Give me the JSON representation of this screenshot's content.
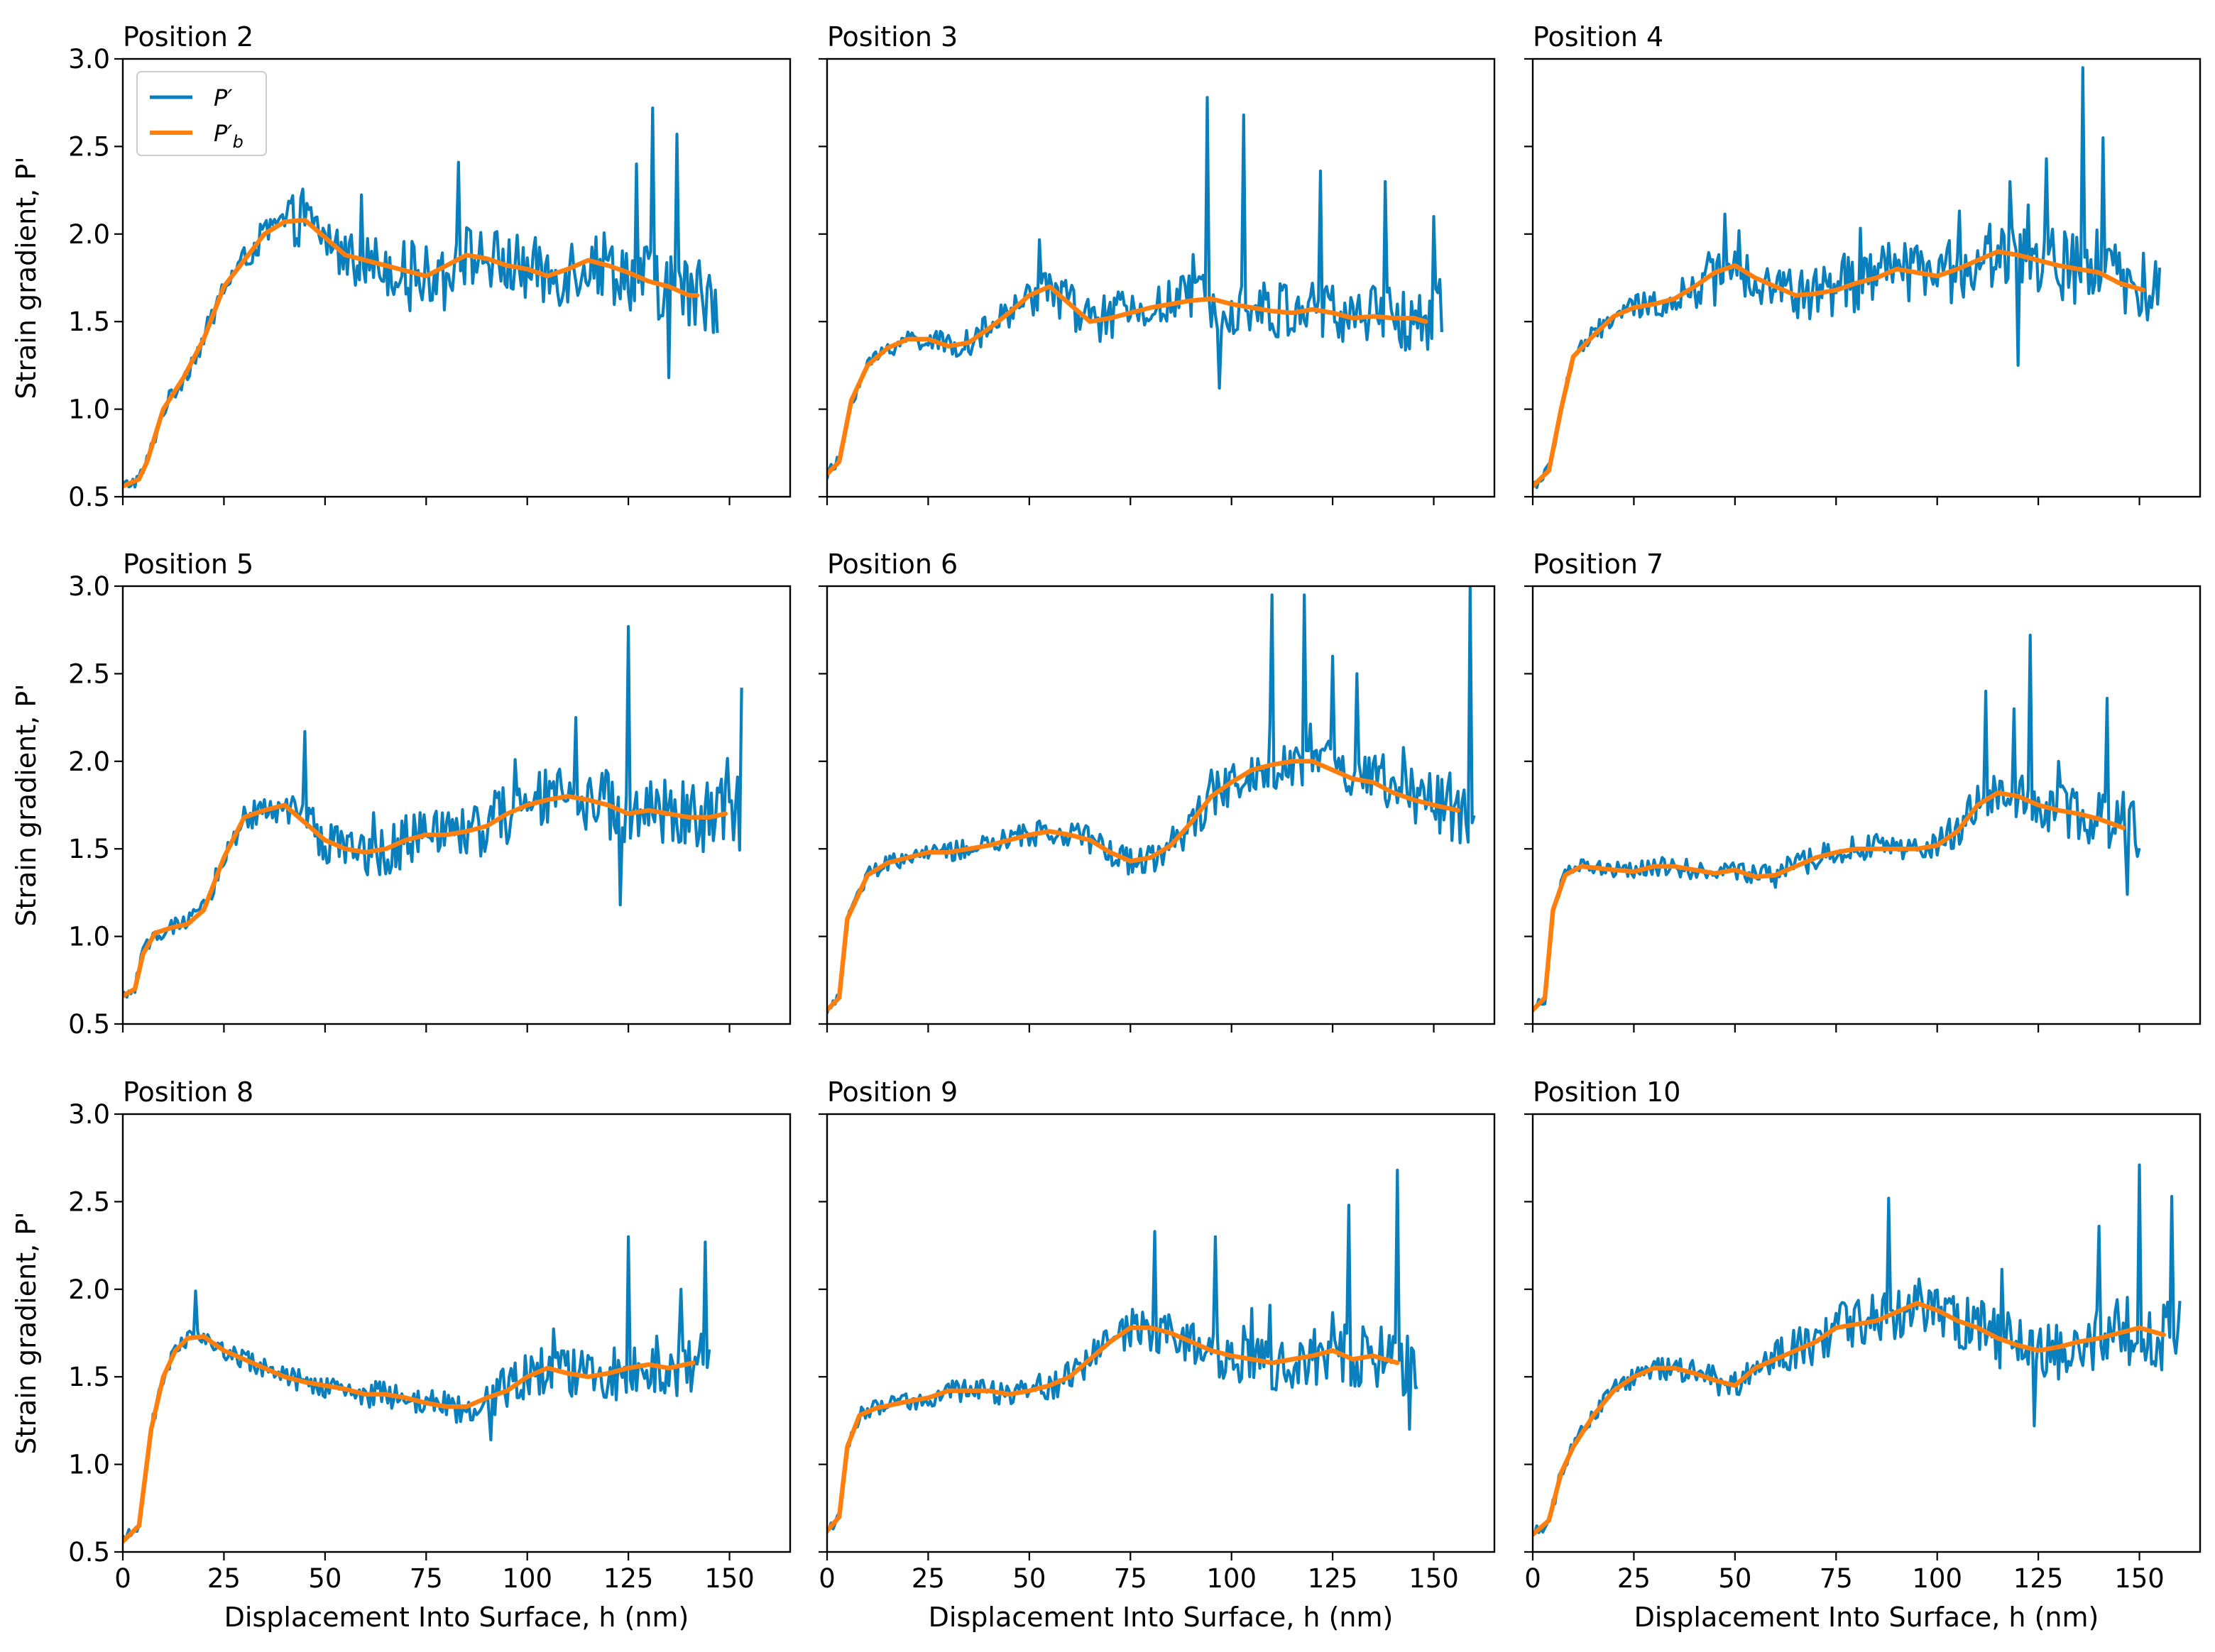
{
  "colors": {
    "raw": "#0a7fbd",
    "smooth": "#ff7f0e"
  },
  "legend": {
    "raw_label": "P′",
    "smooth_label_base": "P′",
    "smooth_label_sub": "b"
  },
  "axes": {
    "ylabel": "Strain gradient, P'",
    "xlabel": "Displacement Into Surface, h (nm)",
    "yticks": [
      "0.5",
      "1.0",
      "1.5",
      "2.0",
      "2.5",
      "3.0"
    ],
    "ytick_values": [
      0.5,
      1.0,
      1.5,
      2.0,
      2.5,
      3.0
    ],
    "xticks": [
      "0",
      "25",
      "50",
      "75",
      "100",
      "125",
      "150"
    ],
    "xtick_values": [
      0,
      25,
      50,
      75,
      100,
      125,
      150
    ]
  },
  "chart_data": [
    {
      "type": "line",
      "title": "Position 2",
      "xlim": [
        0,
        165
      ],
      "ylim": [
        0.5,
        3.0
      ],
      "x_end": 147,
      "smooth_end": 142,
      "noise": 0.18,
      "noise_start": 40,
      "spikes": [
        [
          131,
          2.72
        ],
        [
          137,
          2.57
        ],
        [
          127,
          2.4
        ],
        [
          83,
          2.41
        ],
        [
          135,
          1.18
        ]
      ],
      "series": [
        {
          "name": "P′",
          "role": "raw"
        },
        {
          "name": "P′_b",
          "role": "smooth",
          "x": [
            0,
            4,
            6,
            10,
            15,
            20,
            25,
            30,
            35,
            40,
            45,
            50,
            55,
            60,
            65,
            70,
            75,
            80,
            85,
            90,
            95,
            100,
            105,
            110,
            115,
            120,
            125,
            130,
            135,
            140,
            142
          ],
          "values": [
            0.56,
            0.6,
            0.7,
            1.0,
            1.18,
            1.4,
            1.7,
            1.85,
            2.0,
            2.07,
            2.08,
            1.98,
            1.88,
            1.85,
            1.82,
            1.79,
            1.76,
            1.82,
            1.88,
            1.86,
            1.82,
            1.8,
            1.76,
            1.8,
            1.85,
            1.82,
            1.78,
            1.73,
            1.7,
            1.65,
            1.65
          ]
        }
      ]
    },
    {
      "type": "line",
      "title": "Position 3",
      "xlim": [
        0,
        165
      ],
      "ylim": [
        0.5,
        3.0
      ],
      "x_end": 152,
      "smooth_end": 148,
      "noise": 0.16,
      "noise_start": 50,
      "spikes": [
        [
          94,
          2.78
        ],
        [
          103,
          2.68
        ],
        [
          122,
          2.36
        ],
        [
          138,
          2.3
        ],
        [
          150,
          2.1
        ],
        [
          97,
          1.12
        ]
      ],
      "series": [
        {
          "name": "P′",
          "role": "raw"
        },
        {
          "name": "P′_b",
          "role": "smooth",
          "x": [
            0,
            3,
            6,
            10,
            15,
            20,
            25,
            30,
            35,
            40,
            45,
            50,
            55,
            60,
            65,
            70,
            75,
            80,
            85,
            90,
            95,
            100,
            105,
            110,
            115,
            120,
            125,
            130,
            135,
            140,
            145,
            148
          ],
          "values": [
            0.63,
            0.7,
            1.05,
            1.25,
            1.35,
            1.4,
            1.4,
            1.36,
            1.38,
            1.46,
            1.55,
            1.65,
            1.7,
            1.6,
            1.5,
            1.52,
            1.55,
            1.58,
            1.6,
            1.62,
            1.63,
            1.6,
            1.58,
            1.56,
            1.55,
            1.57,
            1.55,
            1.52,
            1.53,
            1.52,
            1.52,
            1.5
          ]
        }
      ]
    },
    {
      "type": "line",
      "title": "Position 4",
      "xlim": [
        0,
        165
      ],
      "ylim": [
        0.5,
        3.0
      ],
      "x_end": 155,
      "smooth_end": 151,
      "noise": 0.17,
      "noise_start": 40,
      "spikes": [
        [
          136,
          2.95
        ],
        [
          127,
          2.43
        ],
        [
          141,
          2.55
        ],
        [
          118,
          2.3
        ],
        [
          120,
          1.25
        ]
      ],
      "series": [
        {
          "name": "P′",
          "role": "raw"
        },
        {
          "name": "P′_b",
          "role": "smooth",
          "x": [
            0,
            4,
            7,
            10,
            15,
            20,
            25,
            30,
            35,
            40,
            45,
            50,
            55,
            60,
            65,
            70,
            75,
            80,
            85,
            90,
            95,
            100,
            105,
            110,
            115,
            120,
            125,
            130,
            135,
            140,
            145,
            151
          ],
          "values": [
            0.56,
            0.65,
            1.0,
            1.3,
            1.42,
            1.53,
            1.58,
            1.6,
            1.63,
            1.7,
            1.78,
            1.82,
            1.75,
            1.7,
            1.65,
            1.66,
            1.68,
            1.72,
            1.75,
            1.8,
            1.78,
            1.76,
            1.8,
            1.85,
            1.9,
            1.88,
            1.85,
            1.82,
            1.8,
            1.78,
            1.72,
            1.68
          ]
        }
      ]
    },
    {
      "type": "line",
      "title": "Position 5",
      "xlim": [
        0,
        165
      ],
      "ylim": [
        0.5,
        3.0
      ],
      "x_end": 153,
      "smooth_end": 149,
      "noise": 0.17,
      "noise_start": 45,
      "spikes": [
        [
          125,
          2.77
        ],
        [
          153,
          2.42
        ],
        [
          112,
          2.25
        ],
        [
          45,
          2.17
        ],
        [
          123,
          1.18
        ]
      ],
      "series": [
        {
          "name": "P′",
          "role": "raw"
        },
        {
          "name": "P′_b",
          "role": "smooth",
          "x": [
            0,
            3,
            5,
            8,
            12,
            16,
            20,
            25,
            30,
            35,
            40,
            45,
            50,
            55,
            60,
            65,
            70,
            75,
            80,
            85,
            90,
            95,
            100,
            105,
            110,
            115,
            120,
            125,
            130,
            135,
            140,
            145,
            149
          ],
          "values": [
            0.66,
            0.7,
            0.9,
            1.02,
            1.05,
            1.07,
            1.15,
            1.45,
            1.68,
            1.72,
            1.75,
            1.65,
            1.55,
            1.5,
            1.48,
            1.5,
            1.55,
            1.58,
            1.58,
            1.6,
            1.63,
            1.7,
            1.75,
            1.78,
            1.8,
            1.78,
            1.75,
            1.7,
            1.72,
            1.7,
            1.68,
            1.68,
            1.7
          ]
        }
      ]
    },
    {
      "type": "line",
      "title": "Position 6",
      "xlim": [
        0,
        165
      ],
      "ylim": [
        0.5,
        3.0
      ],
      "x_end": 160,
      "smooth_end": 156,
      "noise": 0.15,
      "noise_start": 85,
      "spikes": [
        [
          110,
          2.95
        ],
        [
          118,
          2.95
        ],
        [
          159,
          3.0
        ],
        [
          125,
          2.6
        ],
        [
          131,
          2.5
        ]
      ],
      "series": [
        {
          "name": "P′",
          "role": "raw"
        },
        {
          "name": "P′_b",
          "role": "smooth",
          "x": [
            0,
            3,
            5,
            10,
            15,
            20,
            25,
            30,
            35,
            40,
            45,
            50,
            55,
            60,
            65,
            70,
            75,
            80,
            85,
            90,
            95,
            100,
            105,
            110,
            115,
            120,
            125,
            130,
            135,
            140,
            145,
            150,
            156
          ],
          "values": [
            0.58,
            0.65,
            1.1,
            1.35,
            1.42,
            1.45,
            1.48,
            1.48,
            1.5,
            1.52,
            1.55,
            1.58,
            1.6,
            1.58,
            1.55,
            1.48,
            1.43,
            1.45,
            1.52,
            1.65,
            1.8,
            1.88,
            1.95,
            1.98,
            2.0,
            2.0,
            1.95,
            1.9,
            1.88,
            1.82,
            1.78,
            1.75,
            1.72
          ]
        }
      ]
    },
    {
      "type": "line",
      "title": "Position 7",
      "xlim": [
        0,
        165
      ],
      "ylim": [
        0.5,
        3.0
      ],
      "x_end": 150,
      "smooth_end": 146,
      "noise": 0.13,
      "noise_start": 100,
      "spikes": [
        [
          123,
          2.72
        ],
        [
          112,
          2.4
        ],
        [
          119,
          2.3
        ],
        [
          130,
          2.0
        ],
        [
          142,
          2.36
        ],
        [
          147,
          1.24
        ]
      ],
      "series": [
        {
          "name": "P′",
          "role": "raw"
        },
        {
          "name": "P′_b",
          "role": "smooth",
          "x": [
            0,
            3,
            5,
            8,
            12,
            20,
            25,
            30,
            35,
            40,
            45,
            50,
            55,
            60,
            65,
            70,
            75,
            80,
            85,
            90,
            95,
            100,
            105,
            110,
            115,
            120,
            125,
            130,
            135,
            140,
            146
          ],
          "values": [
            0.58,
            0.65,
            1.15,
            1.35,
            1.4,
            1.38,
            1.37,
            1.4,
            1.4,
            1.38,
            1.36,
            1.38,
            1.34,
            1.35,
            1.4,
            1.45,
            1.48,
            1.5,
            1.5,
            1.5,
            1.5,
            1.52,
            1.6,
            1.75,
            1.82,
            1.8,
            1.75,
            1.72,
            1.7,
            1.67,
            1.62
          ]
        }
      ]
    },
    {
      "type": "line",
      "title": "Position 8",
      "xlim": [
        0,
        165
      ],
      "ylim": [
        0.5,
        3.0
      ],
      "x_end": 145,
      "smooth_end": 141,
      "noise": 0.15,
      "noise_start": 90,
      "spikes": [
        [
          125,
          2.3
        ],
        [
          144,
          2.27
        ],
        [
          18,
          1.99
        ],
        [
          138,
          2.0
        ],
        [
          91,
          1.14
        ]
      ],
      "series": [
        {
          "name": "P′",
          "role": "raw"
        },
        {
          "name": "P′_b",
          "role": "smooth",
          "x": [
            0,
            4,
            7,
            10,
            13,
            16,
            20,
            25,
            30,
            35,
            40,
            45,
            50,
            55,
            60,
            65,
            70,
            75,
            80,
            85,
            90,
            95,
            100,
            105,
            110,
            115,
            120,
            125,
            130,
            135,
            141
          ],
          "values": [
            0.56,
            0.65,
            1.2,
            1.5,
            1.65,
            1.72,
            1.73,
            1.65,
            1.6,
            1.55,
            1.5,
            1.47,
            1.45,
            1.43,
            1.4,
            1.4,
            1.38,
            1.35,
            1.33,
            1.33,
            1.38,
            1.42,
            1.5,
            1.55,
            1.52,
            1.5,
            1.52,
            1.55,
            1.57,
            1.55,
            1.58
          ]
        }
      ]
    },
    {
      "type": "line",
      "title": "Position 9",
      "xlim": [
        0,
        165
      ],
      "ylim": [
        0.5,
        3.0
      ],
      "x_end": 146,
      "smooth_end": 141,
      "noise": 0.15,
      "noise_start": 65,
      "spikes": [
        [
          141,
          2.68
        ],
        [
          129,
          2.48
        ],
        [
          81,
          2.33
        ],
        [
          96,
          2.3
        ],
        [
          144,
          1.2
        ]
      ],
      "series": [
        {
          "name": "P′",
          "role": "raw"
        },
        {
          "name": "P′_b",
          "role": "smooth",
          "x": [
            0,
            3,
            5,
            8,
            12,
            20,
            25,
            30,
            35,
            40,
            45,
            50,
            55,
            60,
            65,
            70,
            75,
            80,
            85,
            90,
            95,
            100,
            105,
            110,
            115,
            120,
            125,
            130,
            135,
            141
          ],
          "values": [
            0.62,
            0.7,
            1.1,
            1.28,
            1.32,
            1.36,
            1.38,
            1.42,
            1.42,
            1.42,
            1.4,
            1.42,
            1.45,
            1.5,
            1.6,
            1.7,
            1.78,
            1.78,
            1.75,
            1.7,
            1.65,
            1.62,
            1.6,
            1.58,
            1.6,
            1.62,
            1.65,
            1.6,
            1.62,
            1.58
          ]
        }
      ]
    },
    {
      "type": "line",
      "title": "Position 10",
      "xlim": [
        0,
        165
      ],
      "ylim": [
        0.5,
        3.0
      ],
      "x_end": 160,
      "smooth_end": 156,
      "noise": 0.16,
      "noise_start": 60,
      "spikes": [
        [
          150,
          2.71
        ],
        [
          88,
          2.52
        ],
        [
          158,
          2.53
        ],
        [
          140,
          2.36
        ],
        [
          124,
          1.22
        ]
      ],
      "series": [
        {
          "name": "P′",
          "role": "raw"
        },
        {
          "name": "P′_b",
          "role": "smooth",
          "x": [
            0,
            4,
            7,
            10,
            15,
            20,
            25,
            30,
            35,
            40,
            45,
            50,
            55,
            60,
            65,
            70,
            75,
            80,
            85,
            90,
            95,
            100,
            105,
            110,
            115,
            120,
            125,
            130,
            135,
            140,
            145,
            150,
            156
          ],
          "values": [
            0.6,
            0.68,
            0.95,
            1.1,
            1.28,
            1.42,
            1.5,
            1.55,
            1.55,
            1.52,
            1.48,
            1.45,
            1.55,
            1.6,
            1.65,
            1.7,
            1.78,
            1.8,
            1.82,
            1.87,
            1.92,
            1.88,
            1.82,
            1.78,
            1.72,
            1.68,
            1.65,
            1.67,
            1.7,
            1.72,
            1.75,
            1.78,
            1.74
          ]
        }
      ]
    }
  ]
}
